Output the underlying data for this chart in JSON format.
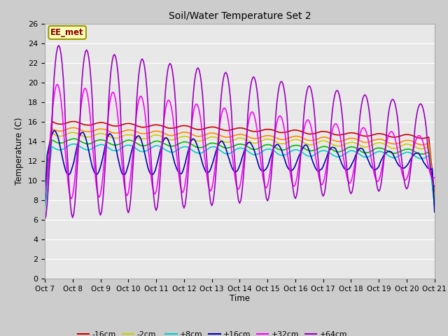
{
  "title": "Soil/Water Temperature Set 2",
  "xlabel": "Time",
  "ylabel": "Temperature (C)",
  "annotation": "EE_met",
  "ylim": [
    0,
    26
  ],
  "xlim": [
    0,
    336
  ],
  "series": {
    "-16cm": {
      "color": "#cc0000",
      "lw": 1.2
    },
    "-8cm": {
      "color": "#ff8800",
      "lw": 1.2
    },
    "-2cm": {
      "color": "#cccc00",
      "lw": 1.2
    },
    "+2cm": {
      "color": "#00bb00",
      "lw": 1.2
    },
    "+8cm": {
      "color": "#00cccc",
      "lw": 1.2
    },
    "+16cm": {
      "color": "#0000aa",
      "lw": 1.2
    },
    "+32cm": {
      "color": "#ff00ff",
      "lw": 1.2
    },
    "+64cm": {
      "color": "#9900bb",
      "lw": 1.2
    }
  },
  "xtick_labels": [
    "Oct 7",
    "Oct 8",
    "Oct 9",
    "Oct 10",
    "Oct 11",
    "Oct 12",
    "Oct 13",
    "Oct 14",
    "Oct 15",
    "Oct 16",
    "Oct 17",
    "Oct 18",
    "Oct 19",
    "Oct 20",
    "Oct 21"
  ],
  "xtick_positions": [
    0,
    24,
    48,
    72,
    96,
    120,
    144,
    168,
    192,
    216,
    240,
    264,
    288,
    312,
    336
  ]
}
